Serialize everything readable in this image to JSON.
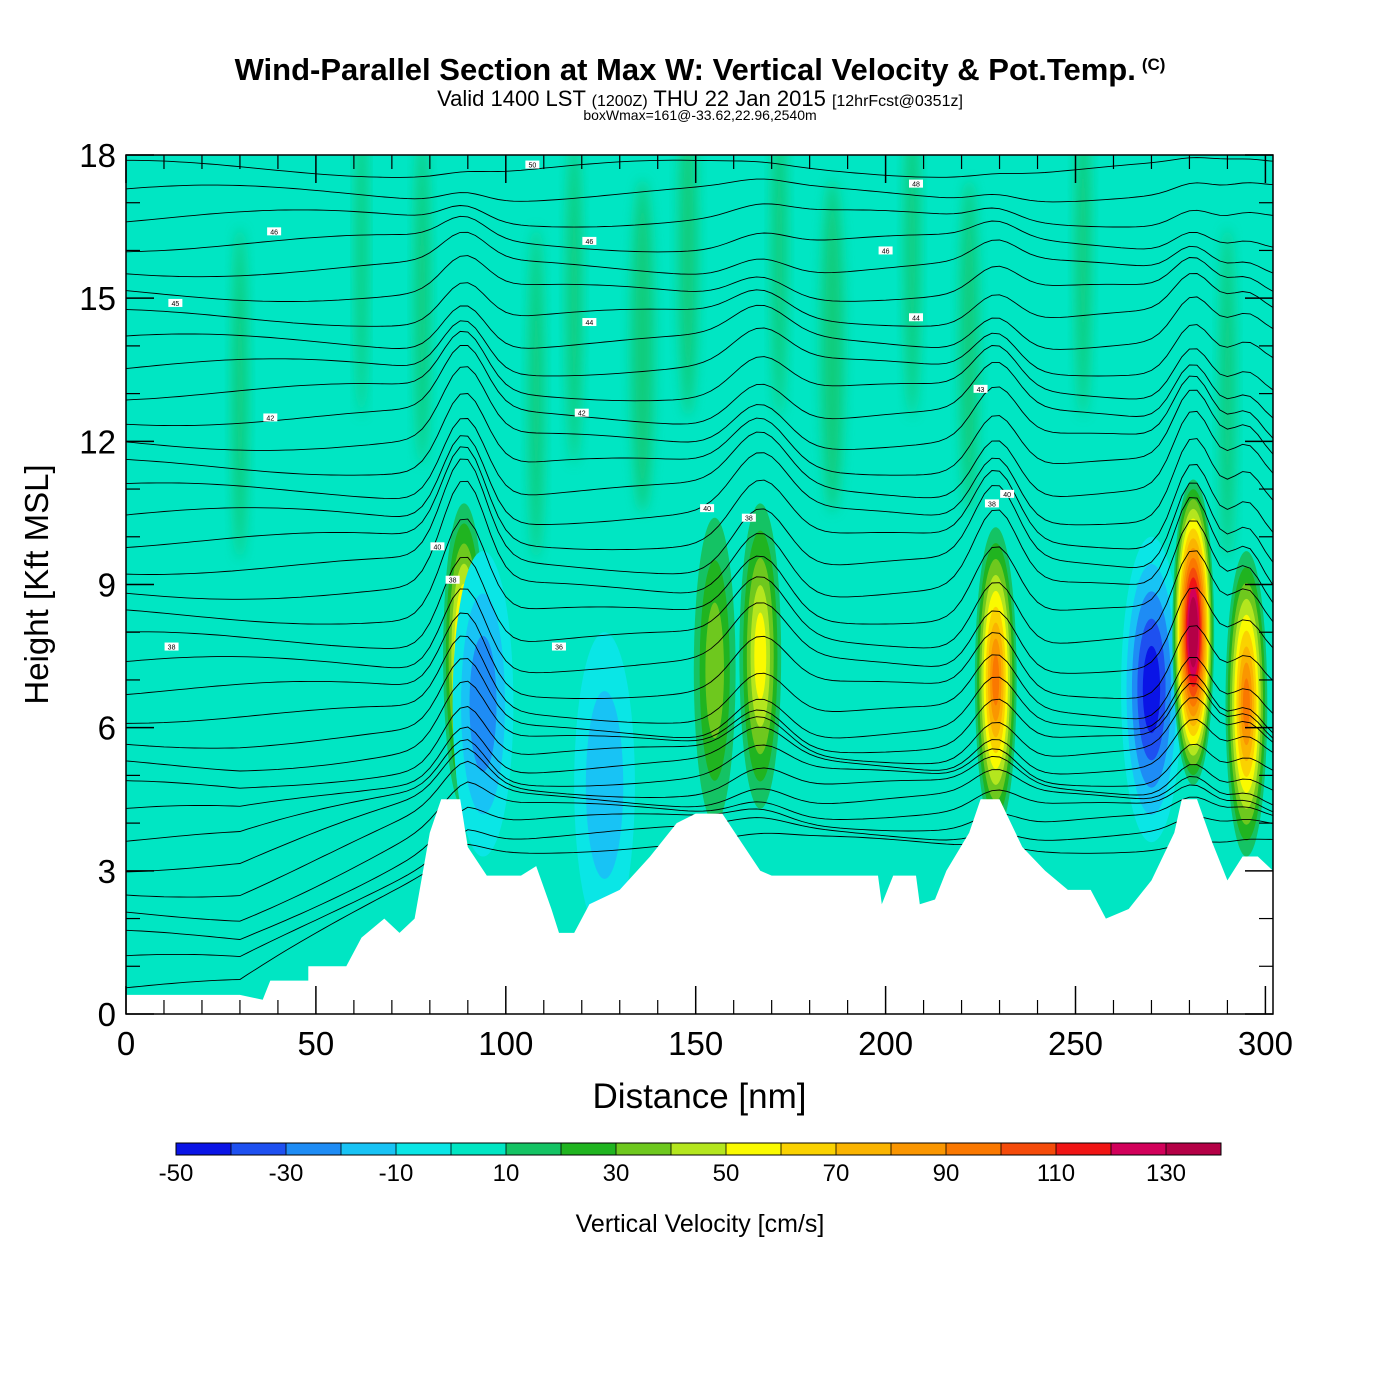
{
  "header": {
    "title": "Wind-Parallel Section at Max W: Vertical Velocity & Pot.Temp.",
    "copyright_mark": "(C)",
    "valid_main": "Valid 1400 LST",
    "valid_zulu": "(1200Z)",
    "valid_date": "THU 22 Jan 2015",
    "forecast": "[12hrFcst@0351z]",
    "box_wmax": "boxWmax=161@-33.62,22.96,2540m"
  },
  "chart_data": {
    "type": "heatmap",
    "xlabel": "Distance [nm]",
    "ylabel": "Height [Kft MSL]",
    "xlim": [
      0,
      302
    ],
    "ylim": [
      0,
      18
    ],
    "x_ticks": [
      "0",
      "50",
      "100",
      "150",
      "200",
      "250",
      "300"
    ],
    "y_ticks": [
      "0",
      "3",
      "6",
      "9",
      "12",
      "15",
      "18"
    ],
    "colorbar": {
      "label": "Vertical Velocity [cm/s]",
      "bounds": [
        -50,
        -40,
        -30,
        -20,
        -10,
        0,
        10,
        20,
        30,
        40,
        50,
        60,
        70,
        80,
        90,
        100,
        110,
        120,
        130,
        140
      ],
      "tick_labels": [
        "-50",
        "-30",
        "-10",
        "10",
        "30",
        "50",
        "70",
        "90",
        "110",
        "130"
      ],
      "colors": [
        "#0a14e6",
        "#1e50f0",
        "#1e8cf5",
        "#18c3f5",
        "#0ae6e6",
        "#00e6c3",
        "#14c364",
        "#20b420",
        "#6ec81e",
        "#b4e61e",
        "#fafa00",
        "#fad200",
        "#fab400",
        "#fa9600",
        "#fa7800",
        "#f54b0a",
        "#f01414",
        "#d2005a",
        "#b40046"
      ]
    },
    "terrain": [
      [
        0,
        0.4
      ],
      [
        30,
        0.4
      ],
      [
        36,
        0.3
      ],
      [
        38,
        0.7
      ],
      [
        48,
        0.7
      ],
      [
        48,
        1.0
      ],
      [
        58,
        1.0
      ],
      [
        62,
        1.6
      ],
      [
        68,
        2.0
      ],
      [
        72,
        1.7
      ],
      [
        76,
        2.0
      ],
      [
        80,
        3.8
      ],
      [
        83,
        4.5
      ],
      [
        88,
        4.5
      ],
      [
        90,
        3.5
      ],
      [
        95,
        2.9
      ],
      [
        104,
        2.9
      ],
      [
        108,
        3.1
      ],
      [
        112,
        2.2
      ],
      [
        114,
        1.7
      ],
      [
        118,
        1.7
      ],
      [
        122,
        2.3
      ],
      [
        130,
        2.6
      ],
      [
        138,
        3.3
      ],
      [
        145,
        4.0
      ],
      [
        150,
        4.2
      ],
      [
        157,
        4.2
      ],
      [
        162,
        3.6
      ],
      [
        167,
        3.0
      ],
      [
        170,
        2.9
      ],
      [
        198,
        2.9
      ],
      [
        199,
        2.3
      ],
      [
        202,
        2.9
      ],
      [
        208,
        2.9
      ],
      [
        209,
        2.3
      ],
      [
        213,
        2.4
      ],
      [
        216,
        3.0
      ],
      [
        222,
        3.8
      ],
      [
        225,
        4.5
      ],
      [
        230,
        4.5
      ],
      [
        236,
        3.5
      ],
      [
        242,
        3.0
      ],
      [
        248,
        2.6
      ],
      [
        254,
        2.6
      ],
      [
        258,
        2.0
      ],
      [
        264,
        2.2
      ],
      [
        270,
        2.8
      ],
      [
        276,
        3.8
      ],
      [
        278,
        4.5
      ],
      [
        282,
        4.5
      ],
      [
        286,
        3.6
      ],
      [
        290,
        2.8
      ],
      [
        294,
        3.3
      ],
      [
        298,
        3.3
      ],
      [
        302,
        3.0
      ]
    ],
    "w_anomalies": [
      {
        "x": 89,
        "z": 7.5,
        "peak": 80
      },
      {
        "x": 94,
        "z": 6.5,
        "peak": -25
      },
      {
        "x": 126,
        "z": 4.8,
        "peak": -20
      },
      {
        "x": 155,
        "z": 7.2,
        "peak": 35
      },
      {
        "x": 167,
        "z": 7.5,
        "peak": 60
      },
      {
        "x": 229,
        "z": 7.0,
        "peak": 95
      },
      {
        "x": 270,
        "z": 6.8,
        "peak": -45
      },
      {
        "x": 281,
        "z": 8.0,
        "peak": 161
      },
      {
        "x": 295,
        "z": 6.5,
        "peak": 100
      }
    ],
    "theta_labels": [
      "50",
      "48",
      "46",
      "46",
      "46",
      "45",
      "44",
      "44",
      "43",
      "42",
      "42",
      "40",
      "40",
      "40",
      "38",
      "38",
      "38",
      "38",
      "36"
    ]
  }
}
